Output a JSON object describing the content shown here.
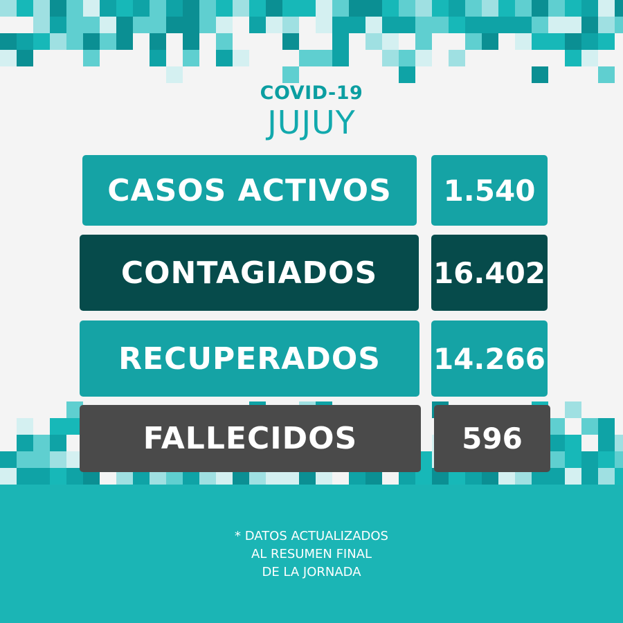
{
  "header": {
    "line1": "COVID-19",
    "line2": "JUJUY"
  },
  "stats": [
    {
      "label": "CASOS ACTIVOS",
      "value": "1.540"
    },
    {
      "label": "CONTAGIADOS",
      "value": "16.402"
    },
    {
      "label": "RECUPERADOS",
      "value": "14.266"
    },
    {
      "label": "FALLECIDOS",
      "value": "596"
    }
  ],
  "footnote": {
    "line1": "* DATOS ACTUALIZADOS",
    "line2": "AL RESUMEN FINAL",
    "line3": "DE LA JORNADA"
  },
  "colors": {
    "teal": "#15a3a5",
    "dark_teal": "#064b4b",
    "gray": "#4a4a4a",
    "background": "#f4f4f4"
  }
}
